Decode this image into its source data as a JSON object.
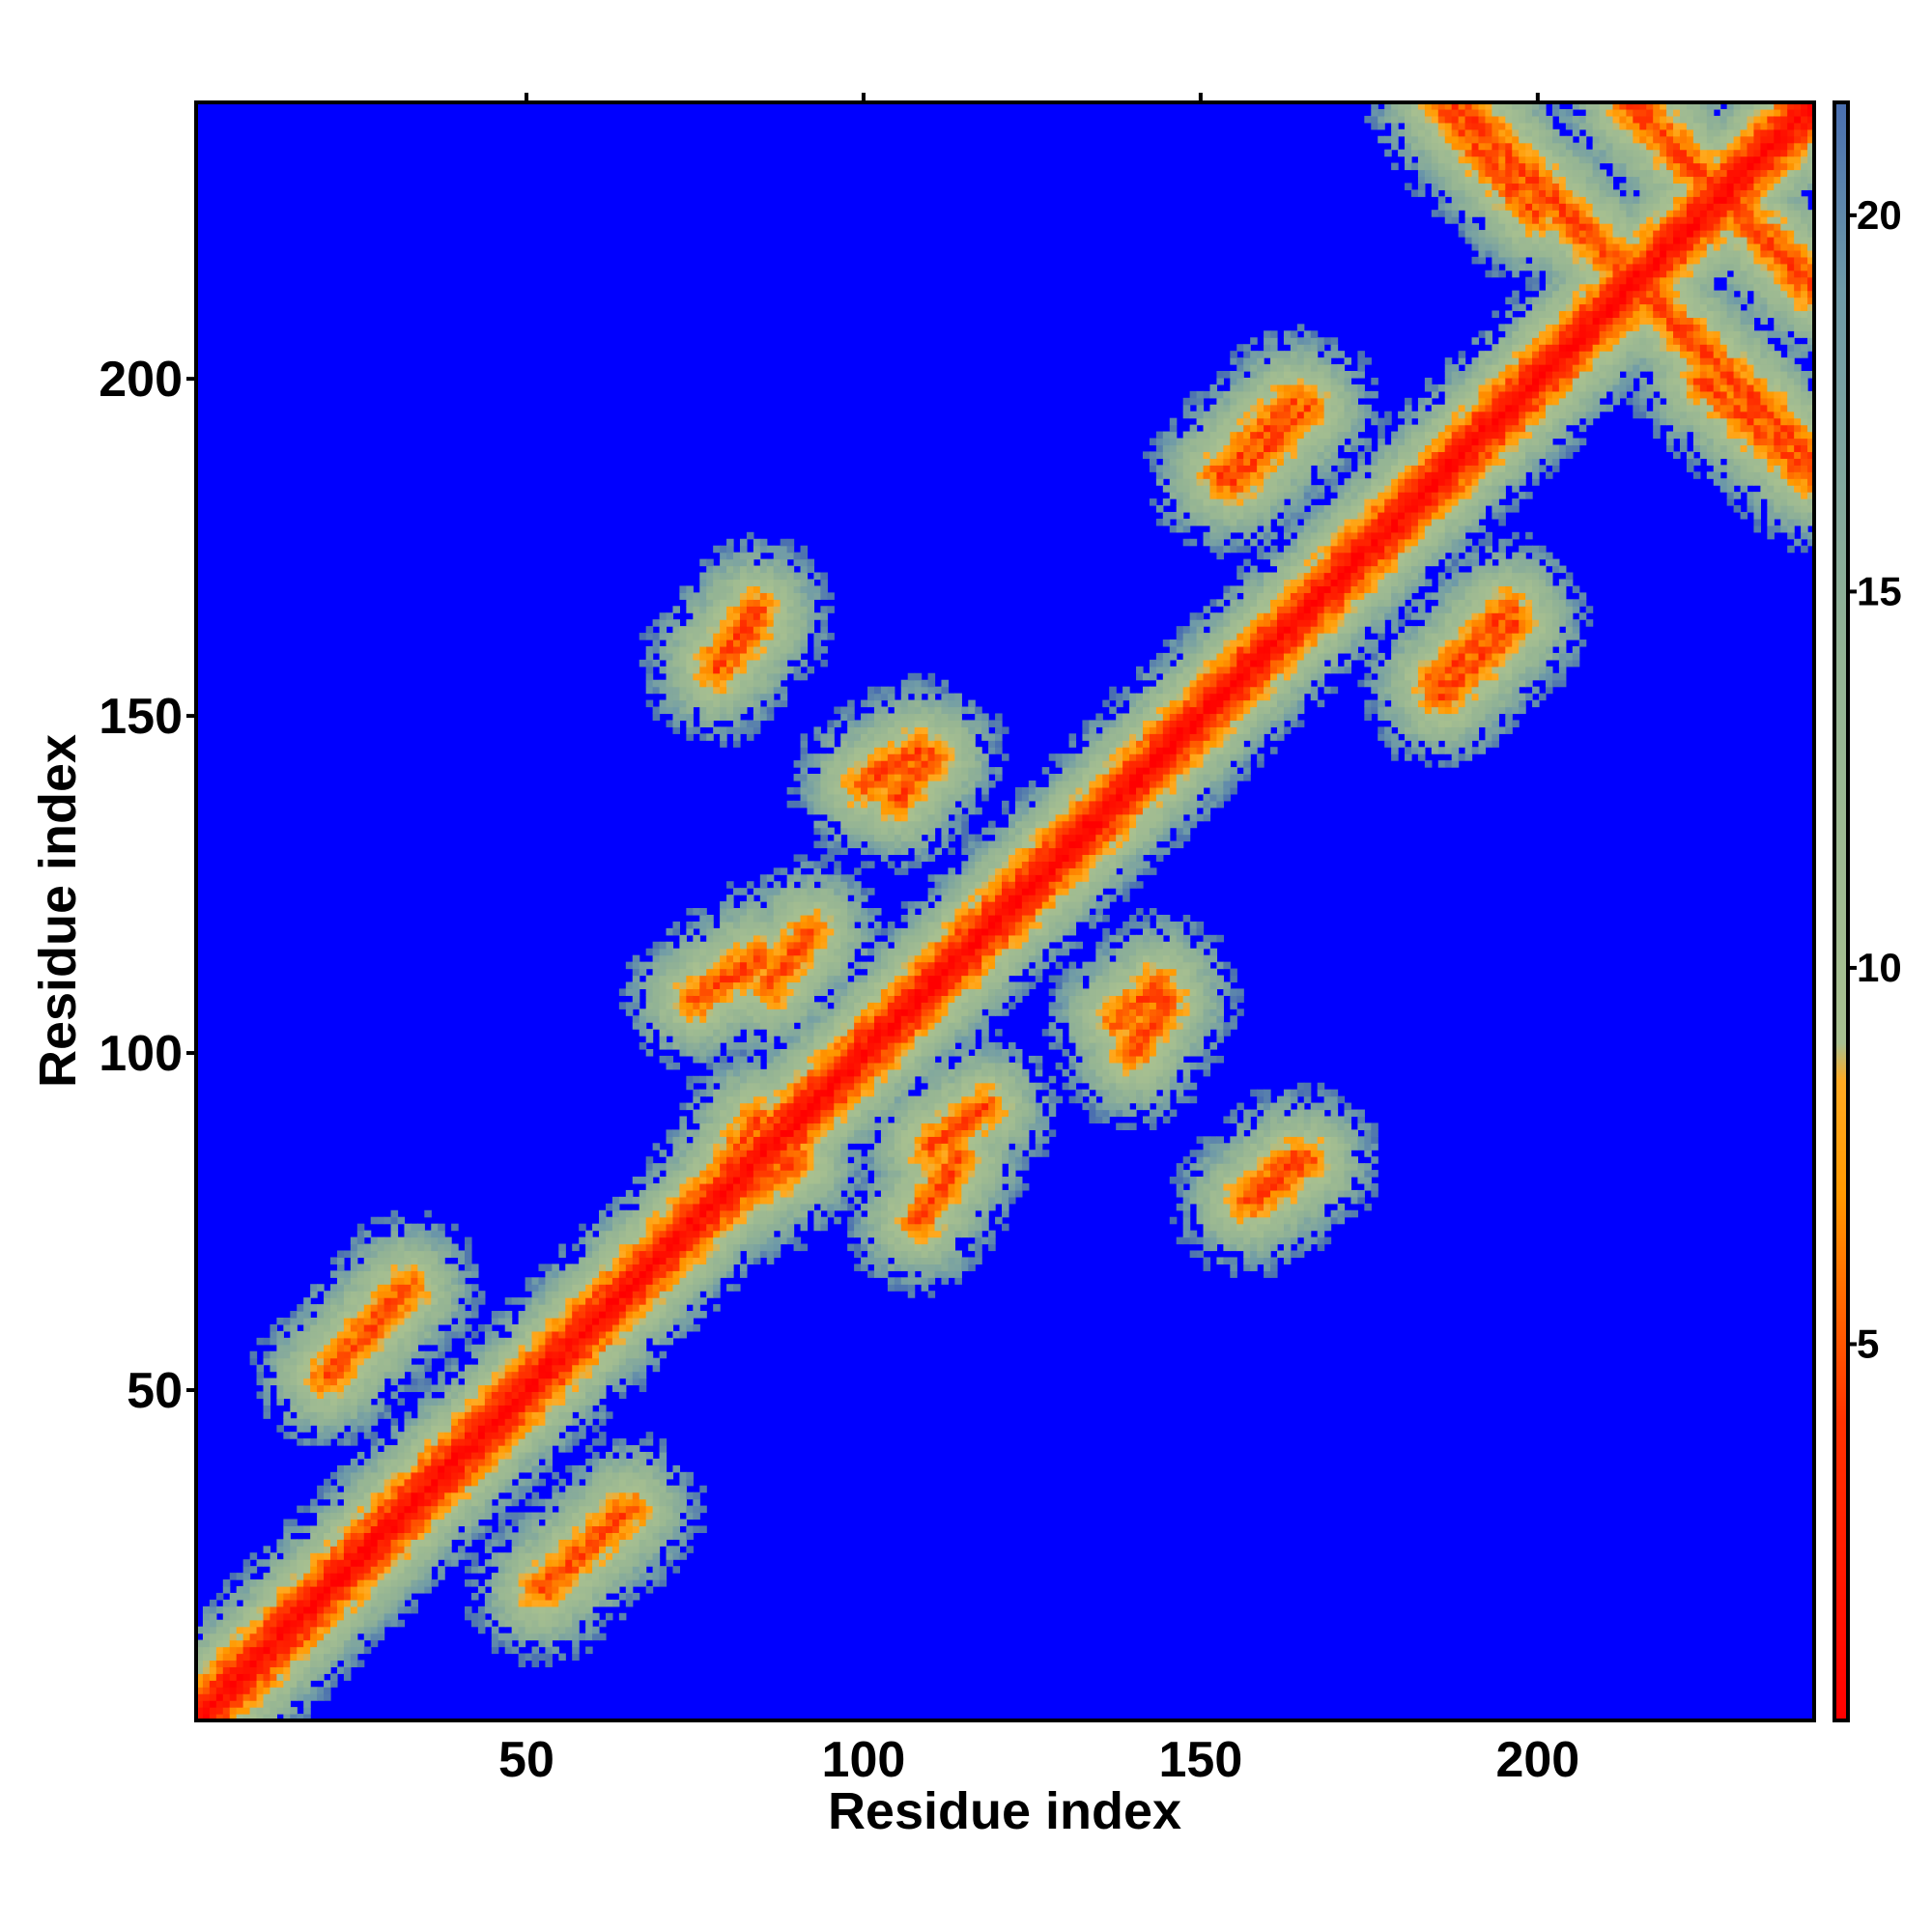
{
  "chart_data": {
    "type": "heatmap",
    "title": "",
    "xlabel": "Residue index",
    "ylabel": "Residue index",
    "xlim": [
      1,
      241
    ],
    "ylim": [
      1,
      241
    ],
    "x_ticks": [
      50,
      100,
      150,
      200
    ],
    "y_ticks": [
      50,
      100,
      150,
      200
    ],
    "colorbar": {
      "ticks": [
        5,
        10,
        15,
        20
      ],
      "range": [
        0,
        21.5
      ],
      "stops": [
        {
          "value": 0,
          "color": "#ff0000"
        },
        {
          "value": 4,
          "color": "#ff3300"
        },
        {
          "value": 7,
          "color": "#ff9900"
        },
        {
          "value": 8.5,
          "color": "#ffaa22"
        },
        {
          "value": 9,
          "color": "#a8c090"
        },
        {
          "value": 14,
          "color": "#94b494"
        },
        {
          "value": 19,
          "color": "#6e9aa8"
        },
        {
          "value": 21.5,
          "color": "#4a6fb0"
        }
      ]
    },
    "background_color": "#0000ff",
    "matrix_description_note": "",
    "features": {
      "diagonal": {
        "start": 1,
        "end": 241
      },
      "contact_bands": [
        {
          "x1": 52,
          "y1": 20,
          "x2": 65,
          "y2": 32,
          "width": 3
        },
        {
          "x1": 78,
          "y1": 80,
          "x2": 84,
          "y2": 90,
          "width": 2
        },
        {
          "x1": 108,
          "y1": 75,
          "x2": 114,
          "y2": 84,
          "width": 2
        },
        {
          "x1": 86,
          "y1": 110,
          "x2": 92,
          "y2": 118,
          "width": 2
        },
        {
          "x1": 78,
          "y1": 157,
          "x2": 84,
          "y2": 164,
          "width": 2
        },
        {
          "x1": 105,
          "y1": 138,
          "x2": 110,
          "y2": 144,
          "width": 2
        },
        {
          "x1": 140,
          "y1": 100,
          "x2": 145,
          "y2": 108,
          "width": 2
        },
        {
          "x1": 158,
          "y1": 78,
          "x2": 166,
          "y2": 84,
          "width": 2
        },
        {
          "x1": 155,
          "y1": 185,
          "x2": 166,
          "y2": 196,
          "width": 2
        },
        {
          "x1": 186,
          "y1": 153,
          "x2": 197,
          "y2": 164,
          "width": 2
        },
        {
          "x1": 190,
          "y1": 240,
          "x2": 241,
          "y2": 188,
          "width": 2
        },
        {
          "x1": 215,
          "y1": 241,
          "x2": 241,
          "y2": 214,
          "width": 2
        },
        {
          "x1": 225,
          "y1": 200,
          "x2": 241,
          "y2": 186,
          "width": 2
        }
      ]
    }
  }
}
